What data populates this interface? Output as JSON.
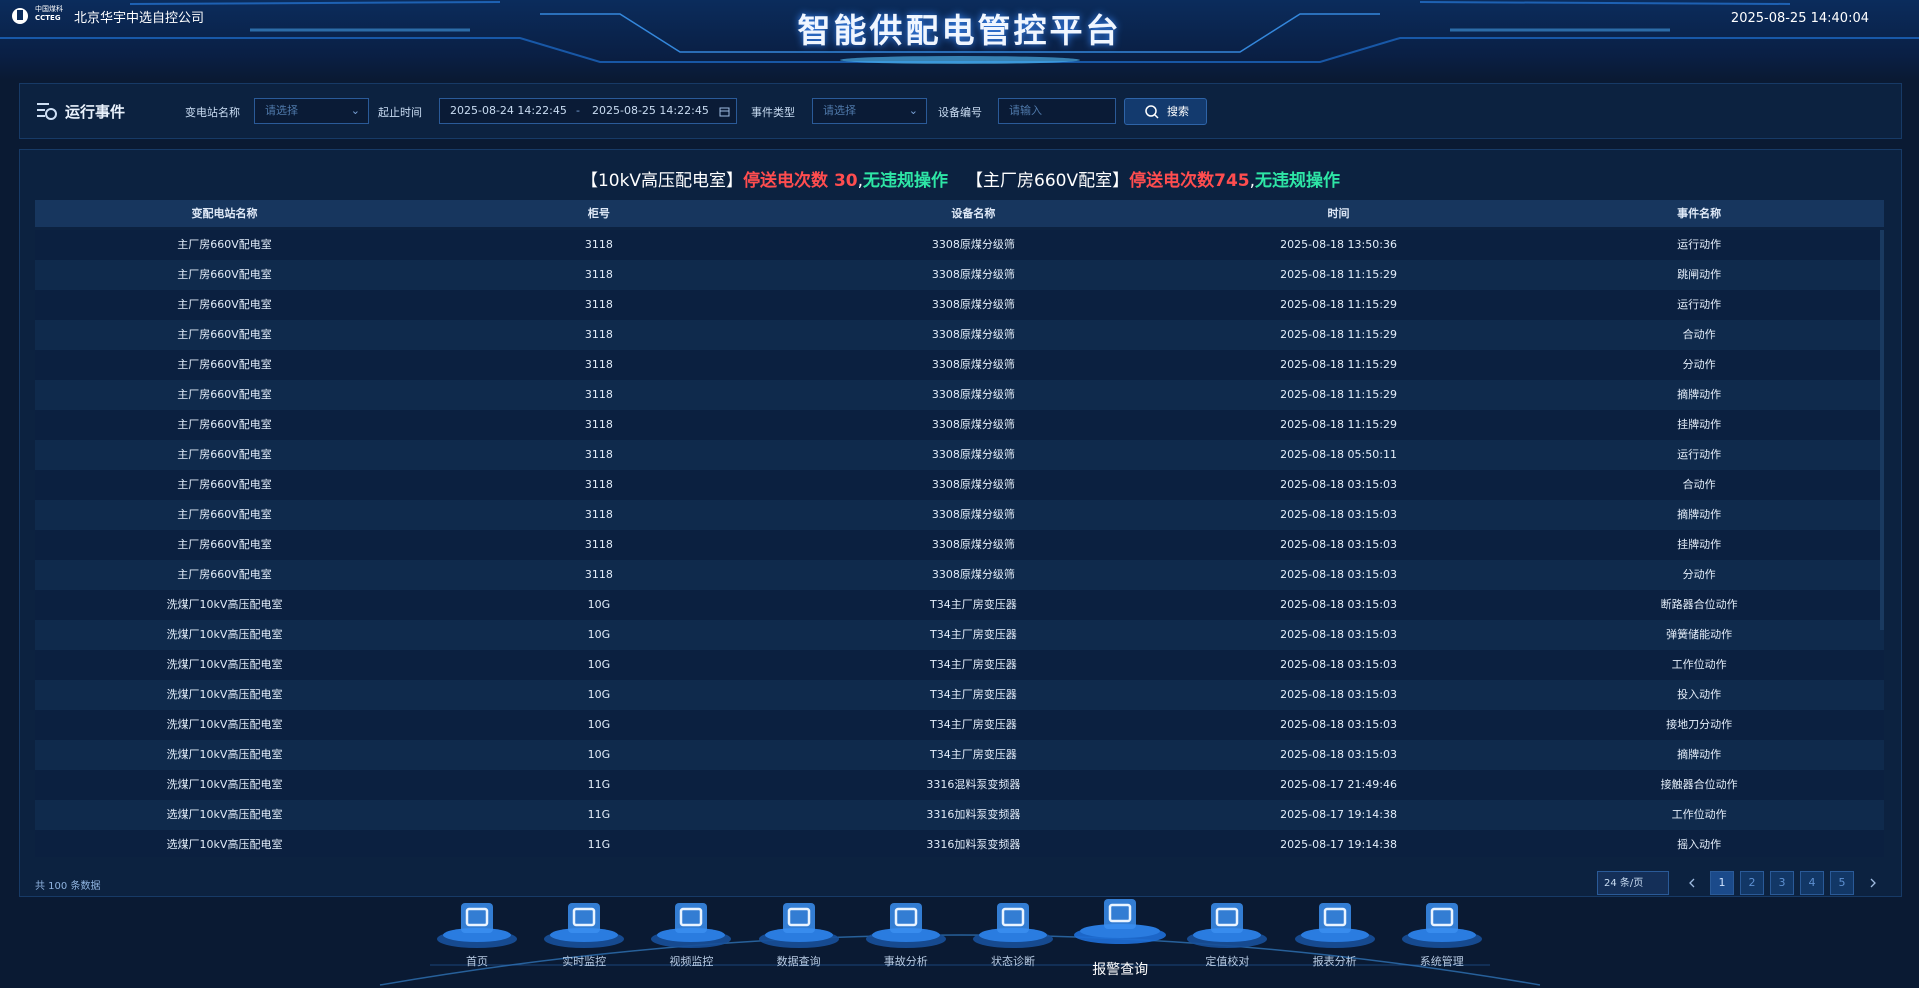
{
  "header": {
    "logo_text": "中国煤科",
    "logo_sub": "CCTEG",
    "company": "北京华宇中选自控公司",
    "title": "智能供配电管控平台",
    "datetime": "2025-08-25 14:40:04"
  },
  "filters": {
    "section_title": "运行事件",
    "station_label": "变电站名称",
    "station_placeholder": "请选择",
    "time_label": "起止时间",
    "start_time": "2025-08-24 14:22:45",
    "separator": "-",
    "end_time": "2025-08-25 14:22:45",
    "event_type_label": "事件类型",
    "event_type_placeholder": "请选择",
    "device_label": "设备编号",
    "device_placeholder": "请输入",
    "search_button": "搜索"
  },
  "summary": [
    {
      "text": "【10kV高压配电室】",
      "color": "#ffffff"
    },
    {
      "text": "停送电次数 30",
      "color": "#ff4d4f"
    },
    {
      "text": ",",
      "color": "#ffffff"
    },
    {
      "text": "无违规操作",
      "color": "#2ee6a6"
    },
    {
      "text": "【主厂房660V配室】",
      "color": "#ffffff"
    },
    {
      "text": "停送电次数745",
      "color": "#ff4d4f"
    },
    {
      "text": ",",
      "color": "#ffffff"
    },
    {
      "text": "无违规操作",
      "color": "#2ee6a6"
    }
  ],
  "table": {
    "columns": [
      "变配电站名称",
      "柜号",
      "设备名称",
      "时间",
      "事件名称"
    ],
    "rows": [
      [
        "主厂房660V配电室",
        "3118",
        "3308原煤分级筛",
        "2025-08-18 13:50:36",
        "运行动作"
      ],
      [
        "主厂房660V配电室",
        "3118",
        "3308原煤分级筛",
        "2025-08-18 11:15:29",
        "跳闸动作"
      ],
      [
        "主厂房660V配电室",
        "3118",
        "3308原煤分级筛",
        "2025-08-18 11:15:29",
        "运行动作"
      ],
      [
        "主厂房660V配电室",
        "3118",
        "3308原煤分级筛",
        "2025-08-18 11:15:29",
        "合动作"
      ],
      [
        "主厂房660V配电室",
        "3118",
        "3308原煤分级筛",
        "2025-08-18 11:15:29",
        "分动作"
      ],
      [
        "主厂房660V配电室",
        "3118",
        "3308原煤分级筛",
        "2025-08-18 11:15:29",
        "摘牌动作"
      ],
      [
        "主厂房660V配电室",
        "3118",
        "3308原煤分级筛",
        "2025-08-18 11:15:29",
        "挂牌动作"
      ],
      [
        "主厂房660V配电室",
        "3118",
        "3308原煤分级筛",
        "2025-08-18 05:50:11",
        "运行动作"
      ],
      [
        "主厂房660V配电室",
        "3118",
        "3308原煤分级筛",
        "2025-08-18 03:15:03",
        "合动作"
      ],
      [
        "主厂房660V配电室",
        "3118",
        "3308原煤分级筛",
        "2025-08-18 03:15:03",
        "摘牌动作"
      ],
      [
        "主厂房660V配电室",
        "3118",
        "3308原煤分级筛",
        "2025-08-18 03:15:03",
        "挂牌动作"
      ],
      [
        "主厂房660V配电室",
        "3118",
        "3308原煤分级筛",
        "2025-08-18 03:15:03",
        "分动作"
      ],
      [
        "洗煤厂10kV高压配电室",
        "10G",
        "T34主厂房变压器",
        "2025-08-18 03:15:03",
        "断路器合位动作"
      ],
      [
        "洗煤厂10kV高压配电室",
        "10G",
        "T34主厂房变压器",
        "2025-08-18 03:15:03",
        "弹簧储能动作"
      ],
      [
        "洗煤厂10kV高压配电室",
        "10G",
        "T34主厂房变压器",
        "2025-08-18 03:15:03",
        "工作位动作"
      ],
      [
        "洗煤厂10kV高压配电室",
        "10G",
        "T34主厂房变压器",
        "2025-08-18 03:15:03",
        "投入动作"
      ],
      [
        "洗煤厂10kV高压配电室",
        "10G",
        "T34主厂房变压器",
        "2025-08-18 03:15:03",
        "接地刀分动作"
      ],
      [
        "洗煤厂10kV高压配电室",
        "10G",
        "T34主厂房变压器",
        "2025-08-18 03:15:03",
        "摘牌动作"
      ],
      [
        "洗煤厂10kV高压配电室",
        "11G",
        "3316混料泵变频器",
        "2025-08-17 21:49:46",
        "接触器合位动作"
      ],
      [
        "选煤厂10kV高压配电室",
        "11G",
        "3316加料泵变频器",
        "2025-08-17 19:14:38",
        "工作位动作"
      ],
      [
        "选煤厂10kV高压配电室",
        "11G",
        "3316加料泵变频器",
        "2025-08-17 19:14:38",
        "摇入动作"
      ]
    ]
  },
  "footer": {
    "total": "共 100 条数据",
    "page_size": "24 条/页",
    "pages": [
      "1",
      "2",
      "3",
      "4",
      "5"
    ]
  },
  "nav": [
    {
      "label": "首页",
      "active": false
    },
    {
      "label": "实时监控",
      "active": false
    },
    {
      "label": "视频监控",
      "active": false
    },
    {
      "label": "数据查询",
      "active": false
    },
    {
      "label": "事故分析",
      "active": false
    },
    {
      "label": "状态诊断",
      "active": false
    },
    {
      "label": "报警查询",
      "active": true
    },
    {
      "label": "定值校对",
      "active": false
    },
    {
      "label": "报表分析",
      "active": false
    },
    {
      "label": "系统管理",
      "active": false
    }
  ]
}
